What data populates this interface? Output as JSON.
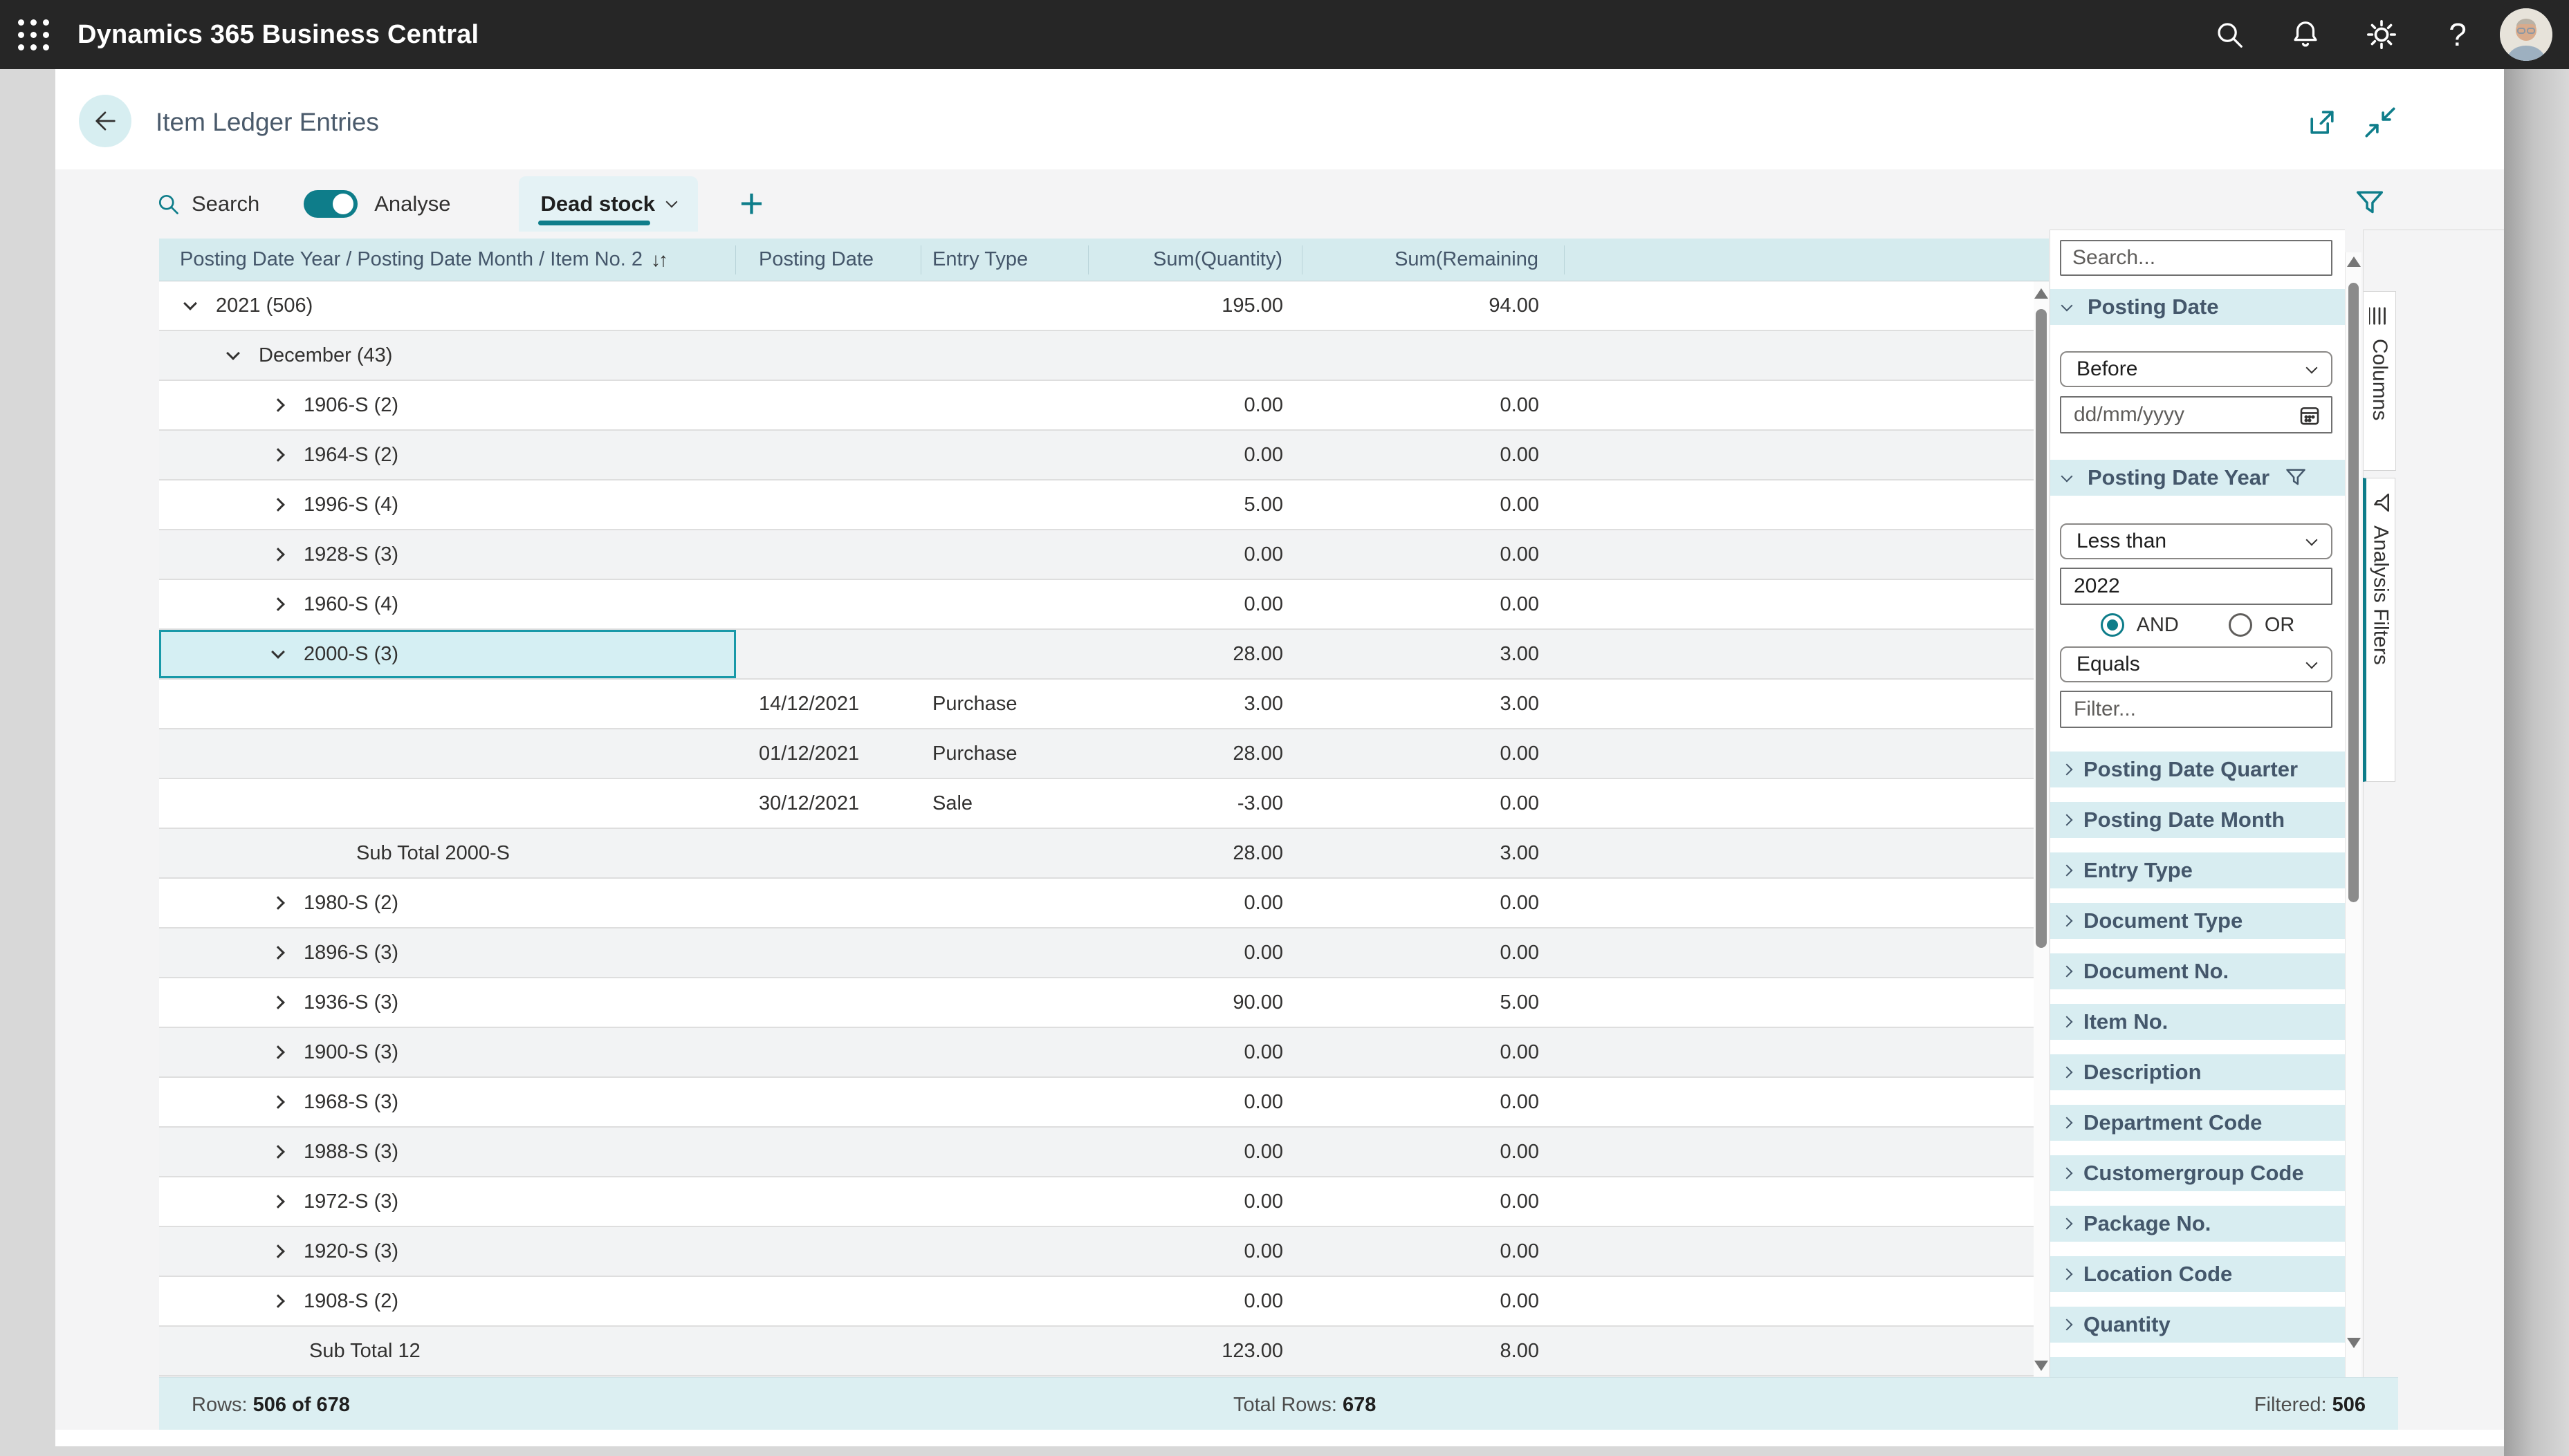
{
  "topbar": {
    "title": "Dynamics 365 Business Central",
    "help_glyph": "?"
  },
  "page_header": {
    "title": "Item Ledger Entries"
  },
  "toolbar": {
    "search_label": "Search",
    "analyse_label": "Analyse",
    "analyse_toggle_on": true,
    "tab_label": "Dead stock",
    "new_tab_glyph": "+"
  },
  "table": {
    "columns": {
      "tree": "Posting Date Year / Posting Date Month / Item No. 2",
      "sort_glyph": "↓↑",
      "posting_date": "Posting Date",
      "entry_type": "Entry Type",
      "quantity": "Sum(Quantity)",
      "remaining": "Sum(Remaining"
    },
    "rows": [
      {
        "kind": "group",
        "level": 0,
        "chevron": "down",
        "label": "2021 (506)",
        "qty": "195.00",
        "remaining": "94.00"
      },
      {
        "kind": "group",
        "level": 1,
        "chevron": "down",
        "label": "December (43)",
        "qty": "",
        "remaining": ""
      },
      {
        "kind": "group",
        "level": 2,
        "chevron": "right",
        "label": "1906-S (2)",
        "qty": "0.00",
        "remaining": "0.00"
      },
      {
        "kind": "group",
        "level": 2,
        "chevron": "right",
        "label": "1964-S (2)",
        "qty": "0.00",
        "remaining": "0.00"
      },
      {
        "kind": "group",
        "level": 2,
        "chevron": "right",
        "label": "1996-S (4)",
        "qty": "5.00",
        "remaining": "0.00"
      },
      {
        "kind": "group",
        "level": 2,
        "chevron": "right",
        "label": "1928-S (3)",
        "qty": "0.00",
        "remaining": "0.00"
      },
      {
        "kind": "group",
        "level": 2,
        "chevron": "right",
        "label": "1960-S (4)",
        "qty": "0.00",
        "remaining": "0.00"
      },
      {
        "kind": "group",
        "level": 2,
        "chevron": "down",
        "label": "2000-S (3)",
        "qty": "28.00",
        "remaining": "3.00",
        "selected": true
      },
      {
        "kind": "entry",
        "date": "14/12/2021",
        "entry_type": "Purchase",
        "qty": "3.00",
        "remaining": "3.00"
      },
      {
        "kind": "entry",
        "date": "01/12/2021",
        "entry_type": "Purchase",
        "qty": "28.00",
        "remaining": "0.00"
      },
      {
        "kind": "entry",
        "date": "30/12/2021",
        "entry_type": "Sale",
        "qty": "-3.00",
        "remaining": "0.00"
      },
      {
        "kind": "subtotal",
        "level": 2,
        "label": "Sub Total 2000-S",
        "qty": "28.00",
        "remaining": "3.00"
      },
      {
        "kind": "group",
        "level": 2,
        "chevron": "right",
        "label": "1980-S (2)",
        "qty": "0.00",
        "remaining": "0.00"
      },
      {
        "kind": "group",
        "level": 2,
        "chevron": "right",
        "label": "1896-S (3)",
        "qty": "0.00",
        "remaining": "0.00"
      },
      {
        "kind": "group",
        "level": 2,
        "chevron": "right",
        "label": "1936-S (3)",
        "qty": "90.00",
        "remaining": "5.00"
      },
      {
        "kind": "group",
        "level": 2,
        "chevron": "right",
        "label": "1900-S (3)",
        "qty": "0.00",
        "remaining": "0.00"
      },
      {
        "kind": "group",
        "level": 2,
        "chevron": "right",
        "label": "1968-S (3)",
        "qty": "0.00",
        "remaining": "0.00"
      },
      {
        "kind": "group",
        "level": 2,
        "chevron": "right",
        "label": "1988-S (3)",
        "qty": "0.00",
        "remaining": "0.00"
      },
      {
        "kind": "group",
        "level": 2,
        "chevron": "right",
        "label": "1972-S (3)",
        "qty": "0.00",
        "remaining": "0.00"
      },
      {
        "kind": "group",
        "level": 2,
        "chevron": "right",
        "label": "1920-S (3)",
        "qty": "0.00",
        "remaining": "0.00"
      },
      {
        "kind": "group",
        "level": 2,
        "chevron": "right",
        "label": "1908-S (2)",
        "qty": "0.00",
        "remaining": "0.00"
      },
      {
        "kind": "subtotal",
        "level": 1,
        "label": "Sub Total 12",
        "qty": "123.00",
        "remaining": "8.00"
      }
    ]
  },
  "footer": {
    "rows_label": "Rows:",
    "rows_value": "506 of 678",
    "total_label": "Total Rows:",
    "total_value": "678",
    "filtered_label": "Filtered:",
    "filtered_value": "506"
  },
  "filter_panel": {
    "search_placeholder": "Search...",
    "posting_date": {
      "title": "Posting Date",
      "operator": "Before",
      "value_placeholder": "dd/mm/yyyy"
    },
    "posting_date_year": {
      "title": "Posting Date Year",
      "operator1": "Less than",
      "value1": "2022",
      "and_label": "AND",
      "or_label": "OR",
      "and_selected": true,
      "operator2": "Equals",
      "value2_placeholder": "Filter..."
    },
    "collapsed_sections": [
      "Posting Date Quarter",
      "Posting Date Month",
      "Entry Type",
      "Document Type",
      "Document No.",
      "Item No.",
      "Description",
      "Department Code",
      "Customergroup Code",
      "Package No.",
      "Location Code",
      "Quantity"
    ]
  },
  "side_tabs": {
    "columns": "Columns",
    "analysis_filters": "Analysis Filters"
  },
  "colors": {
    "accent_teal": "#0e7d8a",
    "selection_border": "#1899a8",
    "topbar_bg": "#262626",
    "grid_header_bg": "#d5ebee",
    "section_header_bg": "#d8edf1",
    "footer_bg": "#dceff2",
    "tab_bg": "#e4f2f5",
    "selected_cell_bg": "#d5eff3",
    "body_gray": "#f4f4f5",
    "page_gray": "#d8d8d8"
  }
}
